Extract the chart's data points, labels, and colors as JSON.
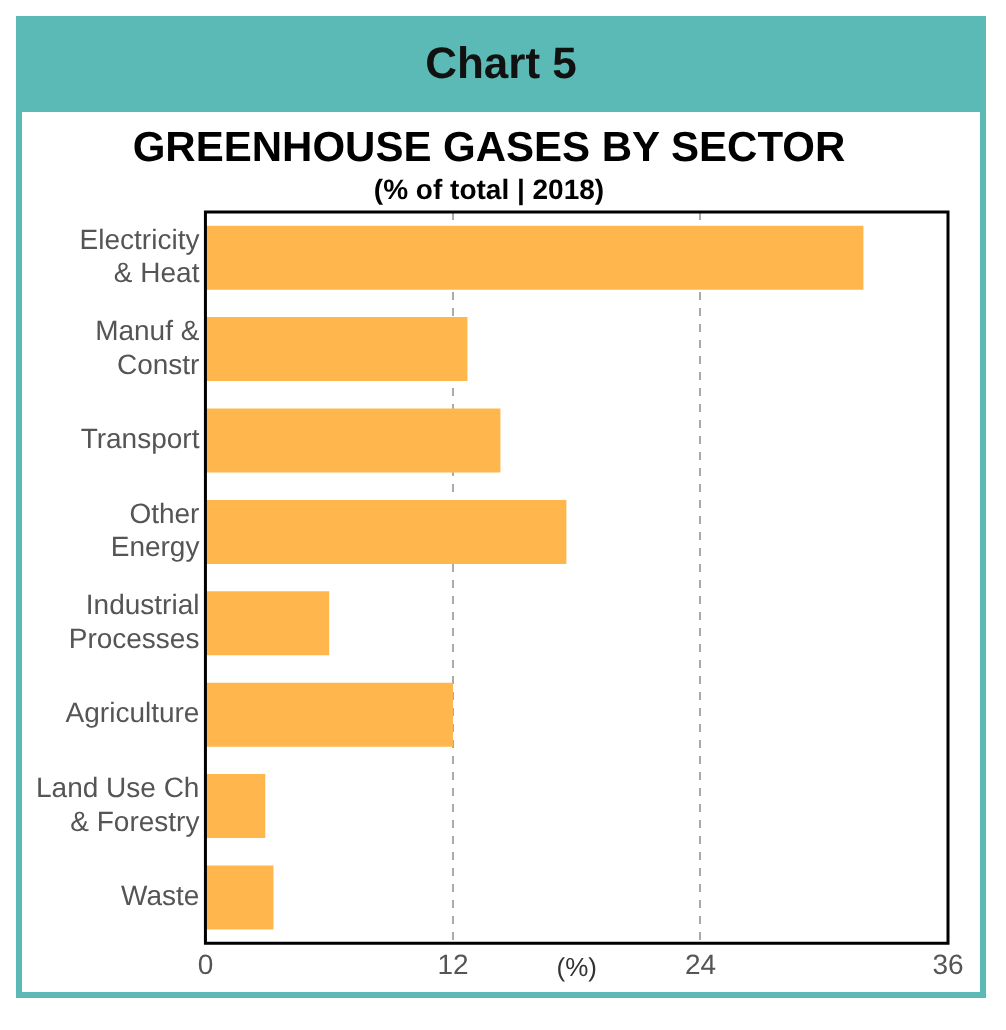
{
  "chart_data": {
    "type": "bar",
    "orientation": "horizontal",
    "title": "GREENHOUSE GASES BY SECTOR",
    "subtitle": "(% of total | 2018)",
    "xlabel": "(%)",
    "annotations": [
      "Chart 5"
    ],
    "categories": [
      "Electricity & Heat",
      "Manuf & Constr",
      "Transport",
      "Other Energy",
      "Industrial Processes",
      "Agriculture",
      "Land Use Ch & Forestry",
      "Waste"
    ],
    "values": [
      31.9,
      12.7,
      14.3,
      17.5,
      6.0,
      12.0,
      2.9,
      3.3
    ],
    "color": "#ffb74d",
    "xlim": [
      0,
      36
    ],
    "xticks": [
      0,
      12,
      24,
      36
    ],
    "grid": "x",
    "legend": false
  }
}
